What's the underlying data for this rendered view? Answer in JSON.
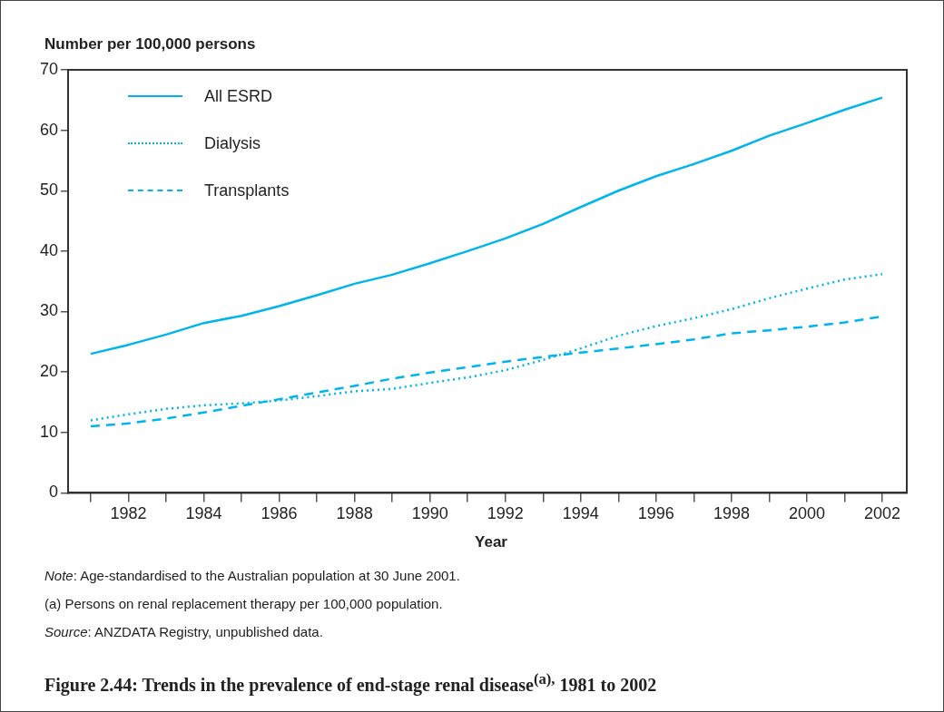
{
  "chart_data": {
    "type": "line",
    "title": "Figure 2.44: Trends in the prevalence of end-stage renal disease$^{(a),}$ 1981 to 2002",
    "xlabel": "Year",
    "ylabel": "Number per 100,000 persons",
    "x": [
      1981,
      1982,
      1983,
      1984,
      1985,
      1986,
      1987,
      1988,
      1989,
      1990,
      1991,
      1992,
      1993,
      1994,
      1995,
      1996,
      1997,
      1998,
      1999,
      2000,
      2001,
      2002
    ],
    "series": [
      {
        "name": "All ESRD",
        "color": "#00b4ec",
        "line_style": "solid",
        "values": [
          23,
          24.5,
          26.2,
          28.1,
          29.3,
          30.9,
          32.7,
          34.6,
          36.1,
          38,
          40,
          42.1,
          44.5,
          47.3,
          50,
          52.4,
          54.4,
          56.6,
          59.1,
          61.2,
          63.4,
          65.4
        ]
      },
      {
        "name": "Dialysis",
        "color": "#00b4ec",
        "line_style": "dotted",
        "values": [
          12,
          13,
          13.9,
          14.5,
          14.8,
          15.3,
          16,
          16.8,
          17.2,
          18.2,
          19.1,
          20.3,
          22,
          23.9,
          26,
          27.6,
          28.9,
          30.4,
          32.2,
          33.8,
          35.3,
          36.2
        ]
      },
      {
        "name": "Transplants",
        "color": "#00b4ec",
        "line_style": "dashed",
        "values": [
          11,
          11.5,
          12.3,
          13.3,
          14.4,
          15.5,
          16.6,
          17.7,
          18.9,
          19.9,
          20.8,
          21.7,
          22.5,
          23.2,
          23.9,
          24.6,
          25.4,
          26.4,
          26.9,
          27.5,
          28.2,
          29.2
        ]
      }
    ],
    "xlim": [
      1980.4,
      2002.65
    ],
    "xticks": [
      {
        "value": 1981,
        "label": null
      },
      1982,
      {
        "value": 1983,
        "label": null
      },
      1984,
      {
        "value": 1985,
        "label": null
      },
      1986,
      {
        "value": 1987,
        "label": null
      },
      1988,
      {
        "value": 1989,
        "label": null
      },
      1990,
      {
        "value": 1991,
        "label": null
      },
      1992,
      {
        "value": 1993,
        "label": null
      },
      1994,
      {
        "value": 1995,
        "label": null
      },
      1996,
      {
        "value": 1997,
        "label": null
      },
      1998,
      {
        "value": 1999,
        "label": null
      },
      2000,
      {
        "value": 2001,
        "label": null
      },
      2002
    ],
    "ylim": [
      0,
      70
    ],
    "yticks": [
      0,
      10,
      20,
      30,
      40,
      50,
      60,
      70
    ],
    "grid": false,
    "legend": "top left",
    "marker": "none",
    "annotations": [
      "Note: Age-standardised to the Australian population at 30 June 2001.",
      "(a)  Persons on renal replacement therapy per 100,000 population.",
      "Source: ANZDATA Registry, unpublished data."
    ]
  }
}
